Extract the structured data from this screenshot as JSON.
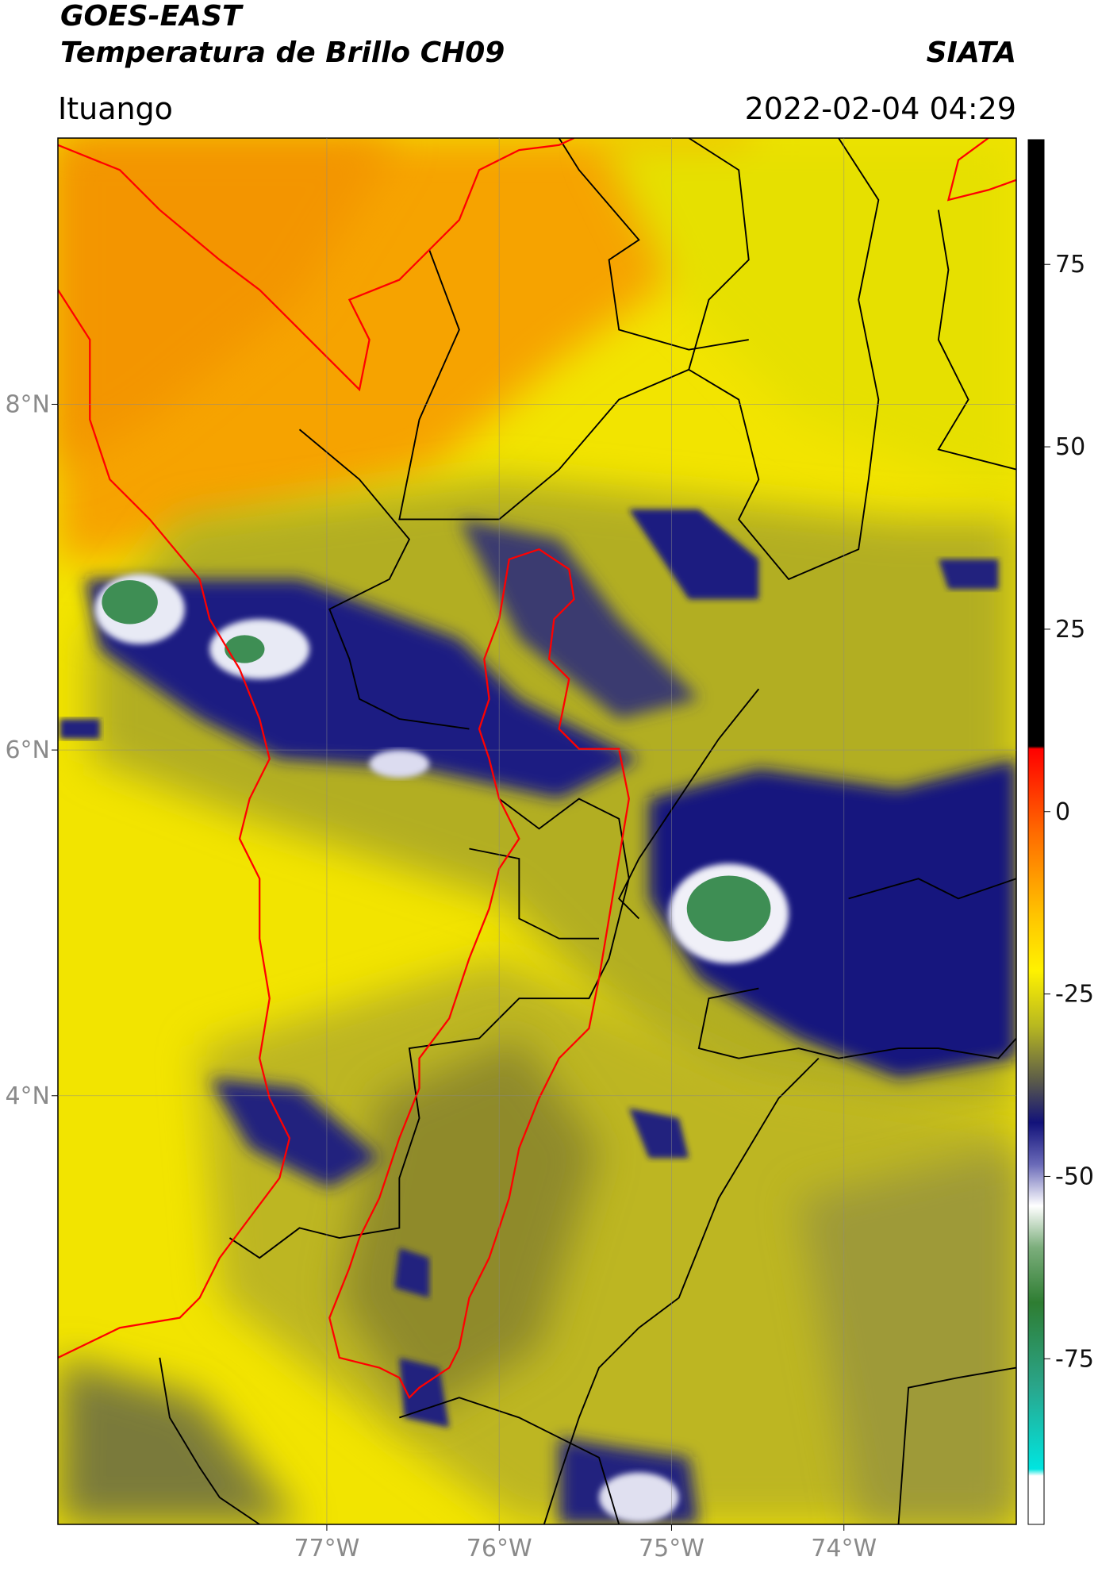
{
  "header": {
    "title": "GOES-EAST",
    "subtitle": "Temperatura de Brillo CH09",
    "source": "SIATA",
    "location": "Ituango",
    "datetime": "2022-02-04 04:29"
  },
  "map": {
    "xlim": [
      -78.56,
      -73.0
    ],
    "ylim": [
      1.52,
      9.54
    ],
    "xticks": [
      {
        "value": -77,
        "label": "77°W"
      },
      {
        "value": -76,
        "label": "76°W"
      },
      {
        "value": -75,
        "label": "75°W"
      },
      {
        "value": -74,
        "label": "74°W"
      }
    ],
    "yticks": [
      {
        "value": 4,
        "label": "4°N"
      },
      {
        "value": 6,
        "label": "6°N"
      },
      {
        "value": 8,
        "label": "8°N"
      }
    ],
    "grid": true
  },
  "colorbar": {
    "lim": [
      -97.7,
      92.1
    ],
    "ticks": [
      -75,
      -50,
      -25,
      0,
      25,
      50,
      75
    ]
  }
}
